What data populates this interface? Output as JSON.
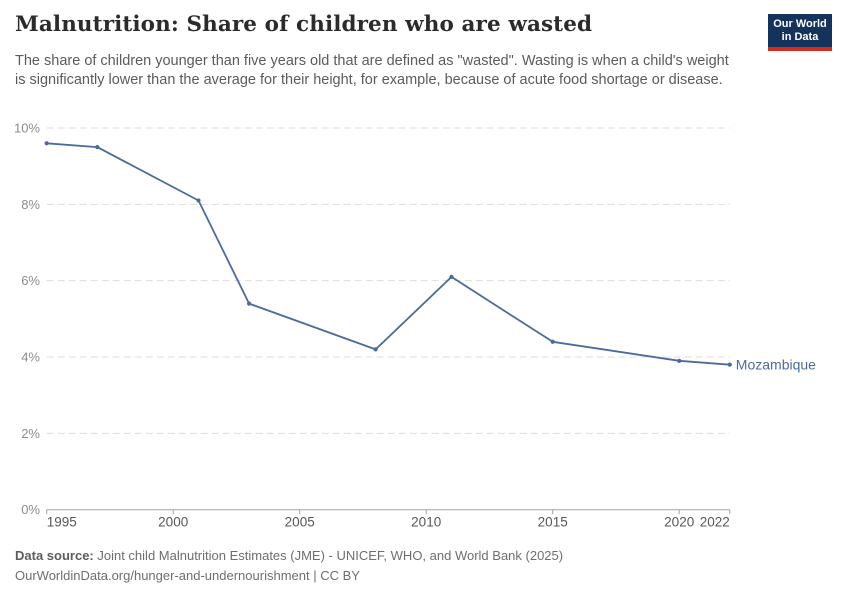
{
  "header": {
    "title": "Malnutrition: Share of children who are wasted",
    "subtitle": "The share of children younger than five years old that are defined as \"wasted\". Wasting is when a child's weight is significantly lower than the average for their height, for example, because of acute food shortage or disease.",
    "logo": {
      "line1": "Our World",
      "line2": "in Data",
      "bg_color": "#13325c",
      "accent_color": "#d42a20",
      "text_color": "#ffffff"
    }
  },
  "chart_data": {
    "type": "line",
    "title": "Malnutrition: Share of children who are wasted",
    "x": [
      1995,
      1997,
      2001,
      2003,
      2008,
      2011,
      2015,
      2020,
      2022
    ],
    "series": [
      {
        "name": "Mozambique",
        "color": "#4c6a9c",
        "values": [
          9.6,
          9.5,
          8.1,
          5.4,
          4.2,
          6.1,
          4.4,
          3.9,
          3.8
        ]
      }
    ],
    "xlabel": "",
    "ylabel": "",
    "xlim": [
      1995,
      2022
    ],
    "ylim": [
      0,
      10
    ],
    "x_ticks": [
      1995,
      2000,
      2005,
      2010,
      2015,
      2020,
      2022
    ],
    "y_ticks": [
      0,
      2,
      4,
      6,
      8,
      10
    ],
    "y_suffix": "%",
    "grid": "horizontal-dashed",
    "legend": "entity-label-right",
    "entity_label": "Mozambique"
  },
  "axis_style": {
    "grid_color": "#dddddd",
    "axis_color": "#a3a3a3",
    "y_label_color": "#8c8c8c",
    "x_label_color": "#575757"
  },
  "footer": {
    "datasource_bold": "Data source:",
    "datasource_text": " Joint child Malnutrition Estimates (JME) - UNICEF, WHO, and World Bank (2025)",
    "license_line": "OurWorldinData.org/hunger-and-undernourishment | CC BY"
  }
}
